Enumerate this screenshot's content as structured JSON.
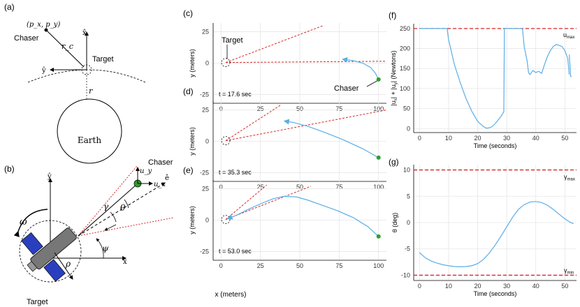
{
  "colors": {
    "trajectory": "#5aaee6",
    "constraint": "#d62728",
    "chaser_point": "#2ca02c",
    "axis": "#000000",
    "grid": "#e6e6e6"
  },
  "panel_a": {
    "label": "(a)",
    "point_label": "(p_x, p_y)",
    "chaser_label": "Chaser",
    "rc_label": "r_c",
    "target_label": "Target",
    "x_hat": "x̂",
    "y_hat": "ŷ",
    "r_label": "r",
    "earth_label": "Earth"
  },
  "panel_b": {
    "label": "(b)",
    "chaser_label": "Chaser",
    "uy_label": "u_y",
    "ux_label": "u_x",
    "e_hat": "ê",
    "y_hat": "ŷ",
    "x_hat": "x̂",
    "gamma": "γ",
    "theta": "θ",
    "omega": "ω",
    "psi": "ψ",
    "rho": "ρ",
    "target_label": "Target"
  },
  "traj_panels": [
    {
      "label": "(c)",
      "time": "t = 17.6 sec",
      "target_label": "Target",
      "chaser_label": "Chaser"
    },
    {
      "label": "(d)",
      "time": "t = 35.3 sec"
    },
    {
      "label": "(e)",
      "time": "t = 53.0 sec"
    }
  ],
  "traj_axes": {
    "ylabel": "y (meters)",
    "xlabel": "x (meters)",
    "xticks": [
      "0",
      "25",
      "50",
      "75",
      "100"
    ],
    "yticks": [
      "25",
      "0",
      "-25"
    ]
  },
  "chart_data": [
    {
      "panel": "(c)",
      "type": "line",
      "xlim": [
        -5,
        105
      ],
      "ylim": [
        -32,
        32
      ],
      "time_s": 17.6,
      "cone_lines": [
        {
          "x": [
            3,
            65
          ],
          "y": [
            0.5,
            30
          ]
        },
        {
          "x": [
            3,
            105
          ],
          "y": [
            0.5,
            1.5
          ]
        }
      ],
      "trajectory": {
        "x": [
          100,
          98,
          95,
          90,
          84,
          78
        ],
        "y": [
          -13,
          -8,
          -3.5,
          0,
          2,
          3
        ]
      },
      "chaser_point": {
        "x": 100,
        "y": -13
      }
    },
    {
      "panel": "(d)",
      "type": "line",
      "xlim": [
        -5,
        105
      ],
      "ylim": [
        -32,
        32
      ],
      "time_s": 35.3,
      "cone_lines": [
        {
          "x": [
            3,
            38
          ],
          "y": [
            0.5,
            29
          ]
        },
        {
          "x": [
            3,
            105
          ],
          "y": [
            0.5,
            25
          ]
        }
      ],
      "trajectory": {
        "x": [
          100,
          90,
          78,
          66,
          55,
          46,
          41
        ],
        "y": [
          -13,
          -6,
          1,
          7,
          12,
          15,
          16
        ]
      },
      "chaser_point": {
        "x": 100,
        "y": -13
      }
    },
    {
      "panel": "(e)",
      "type": "line",
      "xlim": [
        -5,
        105
      ],
      "ylim": [
        -32,
        32
      ],
      "time_s": 53.0,
      "cone_lines": [
        {
          "x": [
            3,
            29
          ],
          "y": [
            0.5,
            28
          ]
        },
        {
          "x": [
            3,
            57
          ],
          "y": [
            0.5,
            27
          ]
        }
      ],
      "trajectory": {
        "x": [
          100,
          93,
          84,
          74,
          64,
          55,
          48,
          40,
          33,
          26,
          18,
          10,
          5
        ],
        "y": [
          -13,
          -5,
          2,
          7.5,
          12,
          16,
          18.5,
          19,
          17,
          13.5,
          9,
          4,
          1.5
        ]
      },
      "chaser_point": {
        "x": 100,
        "y": -13
      }
    },
    {
      "panel": "(f)",
      "type": "line",
      "ylabel": "|u_x| + |u_y|  (Newtons)",
      "xlabel": "Time (seconds)",
      "xticks": [
        "0",
        "10",
        "20",
        "30",
        "40",
        "50"
      ],
      "yticks": [
        "0",
        "50",
        "100",
        "150",
        "200",
        "250"
      ],
      "xlim": [
        -2,
        54
      ],
      "ylim": [
        -10,
        262
      ],
      "limit": {
        "y": 250,
        "label": "u_max"
      },
      "segments": [
        {
          "x": [
            0,
            9.5
          ],
          "y": [
            250,
            250
          ]
        },
        {
          "x": [
            9.5,
            10,
            12,
            14,
            16,
            18,
            20,
            22,
            23,
            24,
            25,
            26,
            28,
            29,
            29.2,
            29.5,
            30,
            35,
            35.3,
            35.5,
            36,
            37,
            37.5,
            38,
            39,
            40,
            41,
            42,
            43,
            44,
            45,
            46,
            47,
            48,
            49,
            50,
            51,
            51.5
          ],
          "y": [
            250,
            222,
            160,
            115,
            75,
            43,
            18,
            5,
            1,
            2,
            5,
            12,
            30,
            42,
            250,
            250,
            250,
            250,
            250,
            245,
            205,
            170,
            140,
            135,
            145,
            140,
            143,
            138,
            160,
            180,
            195,
            205,
            210,
            208,
            205,
            195,
            175,
            135
          ]
        },
        {
          "x": [
            51.5,
            52,
            52.3
          ],
          "y": [
            185,
            130,
            130
          ]
        }
      ]
    },
    {
      "panel": "(g)",
      "type": "line",
      "ylabel": "θ (deg)",
      "xlabel": "Time (seconds)",
      "xticks": [
        "0",
        "10",
        "20",
        "30",
        "40",
        "50"
      ],
      "yticks": [
        "10",
        "5",
        "0",
        "-5",
        "-10"
      ],
      "xlim": [
        -2,
        54
      ],
      "ylim": [
        -11,
        11
      ],
      "limits": [
        {
          "y": 10,
          "label": "γ_max"
        },
        {
          "y": -10,
          "label": "γ_min"
        }
      ],
      "series": {
        "x": [
          0,
          2,
          4,
          6,
          8,
          10,
          12,
          14,
          16,
          18,
          20,
          22,
          24,
          26,
          28,
          30,
          32,
          34,
          36,
          38,
          40,
          42,
          44,
          46,
          48,
          50,
          52,
          53
        ],
        "y": [
          -5.7,
          -6.7,
          -7.3,
          -7.7,
          -8.0,
          -8.2,
          -8.35,
          -8.4,
          -8.35,
          -8.2,
          -7.8,
          -7.0,
          -5.8,
          -4.3,
          -2.6,
          -0.8,
          1.0,
          2.5,
          3.4,
          3.9,
          4.0,
          3.8,
          3.3,
          2.5,
          1.6,
          0.7,
          0.0,
          -0.2
        ]
      }
    }
  ],
  "panel_f": {
    "label": "(f)",
    "umax": "u",
    "umax_sub": "max",
    "ylabel_main": "|u",
    "ylabel_parts": [
      "|u",
      "x",
      "| + |u",
      "y",
      "|  (Newtons)"
    ]
  },
  "panel_g": {
    "label": "(g)",
    "gmax": "γ",
    "gmax_sub": "max",
    "gmin": "γ",
    "gmin_sub": "min"
  }
}
